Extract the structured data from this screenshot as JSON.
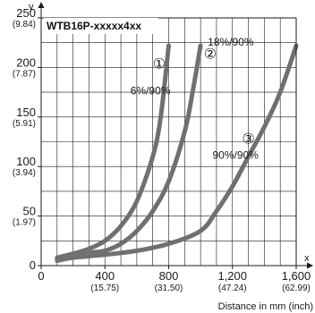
{
  "chart_data": {
    "type": "line",
    "title": "WTB16P-xxxxx4xx",
    "xlabel": "Distance in mm (inch)",
    "x_axis_letter": "x",
    "y_axis_letter": "y",
    "xlim": [
      0,
      1600
    ],
    "ylim": [
      0,
      250
    ],
    "grid": true,
    "x_ticks": [
      {
        "value": 0,
        "label": "0",
        "sub": ""
      },
      {
        "value": 400,
        "label": "400",
        "sub": "(15.75)"
      },
      {
        "value": 800,
        "label": "800",
        "sub": "(31.50)"
      },
      {
        "value": 1200,
        "label": "1,200",
        "sub": "(47.24)"
      },
      {
        "value": 1600,
        "label": "1,600",
        "sub": "(62.99)"
      }
    ],
    "y_ticks": [
      {
        "value": 0,
        "label": "0",
        "sub": ""
      },
      {
        "value": 50,
        "label": "50",
        "sub": "(1.97)"
      },
      {
        "value": 100,
        "label": "100",
        "sub": "(3.94)"
      },
      {
        "value": 150,
        "label": "150",
        "sub": "(5.91)"
      },
      {
        "value": 200,
        "label": "200",
        "sub": "(7.87)"
      },
      {
        "value": 250,
        "label": "250",
        "sub": "(9.84)"
      }
    ],
    "series": [
      {
        "marker": "①",
        "label": "6%/90%",
        "color": "#707070",
        "x": [
          100,
          200,
          300,
          400,
          500,
          600,
          700,
          750,
          800
        ],
        "y": [
          8,
          12,
          17,
          25,
          40,
          65,
          110,
          150,
          222
        ],
        "marker_at": [
          740,
          199
        ],
        "label_at": [
          560,
          173
        ]
      },
      {
        "marker": "②",
        "label": "18%/90%",
        "color": "#707070",
        "x": [
          100,
          200,
          300,
          400,
          500,
          600,
          700,
          800,
          900,
          950,
          1000
        ],
        "y": [
          7,
          10,
          13,
          15,
          22,
          35,
          55,
          85,
          135,
          175,
          222
        ],
        "marker_at": [
          1060,
          209
        ],
        "label_at": [
          1045,
          222
        ]
      },
      {
        "marker": "③",
        "label": "90%/90%",
        "color": "#707070",
        "x": [
          100,
          200,
          400,
          600,
          800,
          1000,
          1100,
          1200,
          1300,
          1400,
          1500,
          1600
        ],
        "y": [
          5,
          8,
          11,
          15,
          22,
          35,
          55,
          80,
          110,
          140,
          175,
          222
        ],
        "marker_at": [
          1300,
          123
        ],
        "label_at": [
          1075,
          108
        ]
      }
    ]
  }
}
